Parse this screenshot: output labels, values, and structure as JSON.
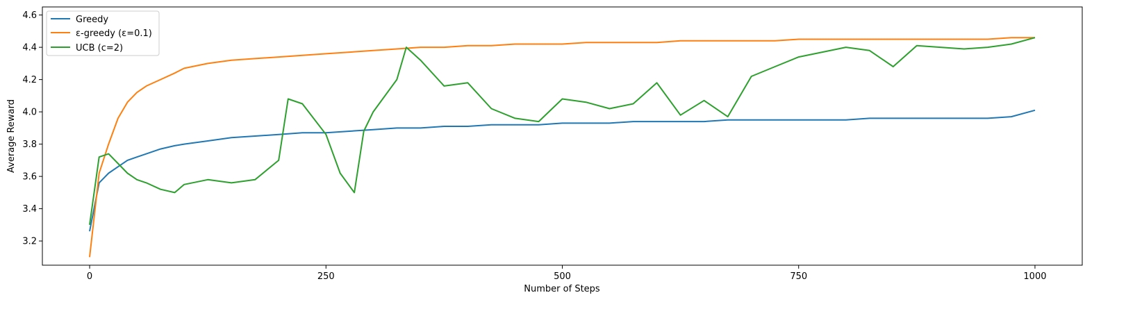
{
  "chart_data": {
    "type": "line",
    "title": "",
    "xlabel": "Number of Steps",
    "ylabel": "Average Reward",
    "xlim": [
      -50,
      1050
    ],
    "ylim": [
      3.05,
      4.65
    ],
    "xticks": [
      0,
      250,
      500,
      750,
      1000
    ],
    "yticks": [
      3.2,
      3.4,
      3.6,
      3.8,
      4.0,
      4.2,
      4.4,
      4.6
    ],
    "legend_position": "top-left",
    "grid": false,
    "series": [
      {
        "name": "Greedy",
        "color": "#1f77b4",
        "x": [
          0,
          10,
          20,
          30,
          40,
          50,
          60,
          75,
          90,
          100,
          125,
          150,
          175,
          200,
          225,
          250,
          275,
          300,
          325,
          350,
          375,
          400,
          425,
          450,
          475,
          500,
          525,
          550,
          575,
          600,
          625,
          650,
          675,
          700,
          725,
          750,
          775,
          800,
          825,
          850,
          875,
          900,
          925,
          950,
          975,
          1000
        ],
        "values": [
          3.26,
          3.56,
          3.62,
          3.66,
          3.7,
          3.72,
          3.74,
          3.77,
          3.79,
          3.8,
          3.82,
          3.84,
          3.85,
          3.86,
          3.87,
          3.87,
          3.88,
          3.89,
          3.9,
          3.9,
          3.91,
          3.91,
          3.92,
          3.92,
          3.92,
          3.93,
          3.93,
          3.93,
          3.94,
          3.94,
          3.94,
          3.94,
          3.95,
          3.95,
          3.95,
          3.95,
          3.95,
          3.95,
          3.96,
          3.96,
          3.96,
          3.96,
          3.96,
          3.96,
          3.97,
          4.01
        ]
      },
      {
        "name": "ε-greedy (ε=0.1)",
        "color": "#ff7f0e",
        "x": [
          0,
          10,
          20,
          30,
          40,
          50,
          60,
          75,
          90,
          100,
          125,
          150,
          175,
          200,
          225,
          250,
          275,
          300,
          325,
          350,
          375,
          400,
          425,
          450,
          475,
          500,
          525,
          550,
          575,
          600,
          625,
          650,
          675,
          700,
          725,
          750,
          775,
          800,
          825,
          850,
          875,
          900,
          925,
          950,
          975,
          1000
        ],
        "values": [
          3.1,
          3.62,
          3.8,
          3.96,
          4.06,
          4.12,
          4.16,
          4.2,
          4.24,
          4.27,
          4.3,
          4.32,
          4.33,
          4.34,
          4.35,
          4.36,
          4.37,
          4.38,
          4.39,
          4.4,
          4.4,
          4.41,
          4.41,
          4.42,
          4.42,
          4.42,
          4.43,
          4.43,
          4.43,
          4.43,
          4.44,
          4.44,
          4.44,
          4.44,
          4.44,
          4.45,
          4.45,
          4.45,
          4.45,
          4.45,
          4.45,
          4.45,
          4.45,
          4.45,
          4.46,
          4.46
        ]
      },
      {
        "name": "UCB (c=2)",
        "color": "#2ca02c",
        "x": [
          0,
          10,
          20,
          30,
          40,
          50,
          60,
          75,
          90,
          100,
          125,
          150,
          175,
          200,
          210,
          225,
          250,
          265,
          280,
          290,
          300,
          325,
          335,
          350,
          375,
          400,
          425,
          450,
          475,
          500,
          525,
          550,
          575,
          600,
          625,
          650,
          675,
          700,
          725,
          750,
          775,
          800,
          825,
          850,
          875,
          900,
          925,
          950,
          975,
          1000
        ],
        "values": [
          3.3,
          3.72,
          3.74,
          3.68,
          3.62,
          3.58,
          3.56,
          3.52,
          3.5,
          3.55,
          3.58,
          3.56,
          3.58,
          3.7,
          4.08,
          4.05,
          3.86,
          3.62,
          3.5,
          3.88,
          4.0,
          4.2,
          4.4,
          4.32,
          4.16,
          4.18,
          4.02,
          3.96,
          3.94,
          4.08,
          4.06,
          4.02,
          4.05,
          4.18,
          3.98,
          4.07,
          3.97,
          4.22,
          4.28,
          4.34,
          4.37,
          4.4,
          4.38,
          4.28,
          4.41,
          4.4,
          4.39,
          4.4,
          4.42,
          4.46
        ]
      }
    ]
  }
}
